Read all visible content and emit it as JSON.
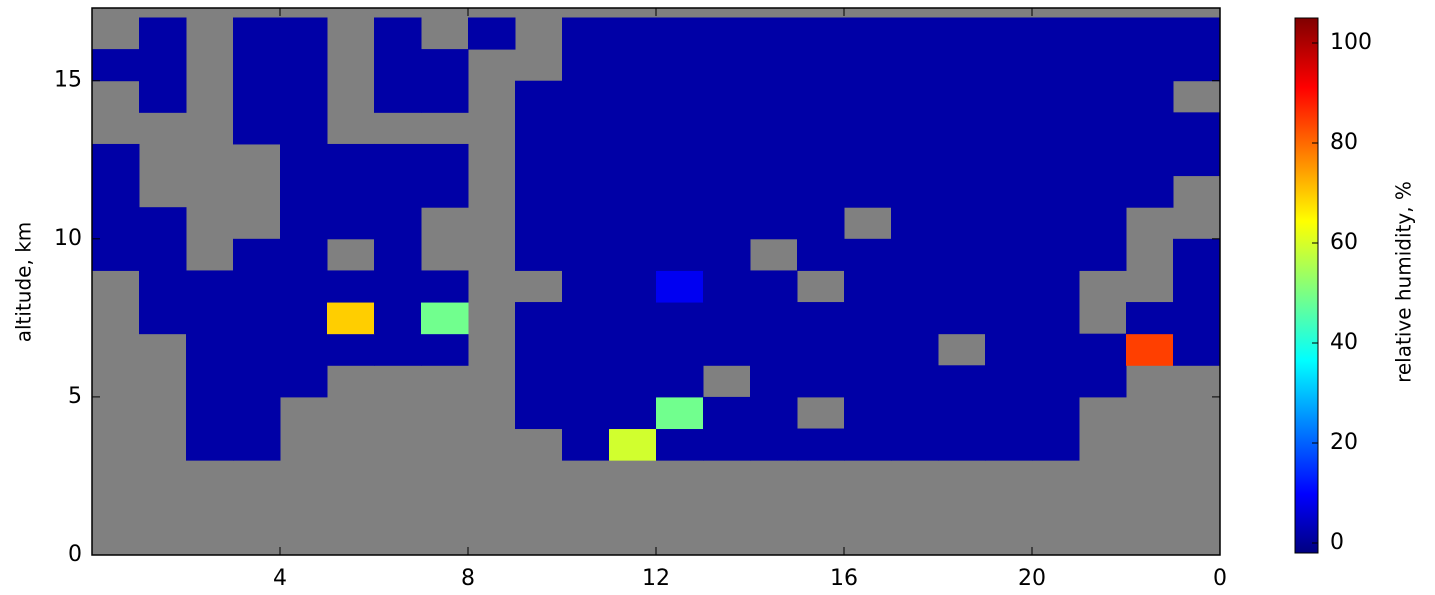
{
  "chart_data": {
    "type": "heatmap",
    "ylabel": "altitude, km",
    "xlim": [
      0,
      24
    ],
    "xticks": [
      4,
      8,
      12,
      16,
      20,
      {
        "value": 24,
        "label": "0"
      }
    ],
    "ylim": [
      0,
      17.3
    ],
    "yticks": [
      0,
      5,
      10,
      15
    ],
    "xbins": [
      0,
      1,
      2,
      3,
      4,
      5,
      6,
      7,
      8,
      9,
      10,
      11,
      12,
      13,
      14,
      15,
      16,
      17,
      18,
      19,
      20,
      21,
      22,
      23,
      24
    ],
    "ybins": [
      0,
      1,
      2,
      3,
      4,
      5,
      6,
      7,
      8,
      9,
      10,
      11,
      12,
      13,
      14,
      15,
      16,
      17
    ],
    "background": "#808080",
    "colormap": "jet",
    "z": [
      [
        null,
        null,
        null,
        null,
        null,
        null,
        null,
        null,
        null,
        null,
        null,
        null,
        null,
        null,
        null,
        null,
        null,
        null,
        null,
        null,
        null,
        null,
        null,
        null
      ],
      [
        null,
        null,
        null,
        null,
        null,
        null,
        null,
        null,
        null,
        null,
        null,
        null,
        null,
        null,
        null,
        null,
        null,
        null,
        null,
        null,
        null,
        null,
        null,
        null
      ],
      [
        null,
        null,
        null,
        null,
        null,
        null,
        null,
        null,
        null,
        null,
        null,
        null,
        null,
        null,
        null,
        null,
        null,
        null,
        null,
        null,
        null,
        null,
        null,
        null
      ],
      [
        null,
        null,
        2,
        2,
        null,
        null,
        null,
        null,
        null,
        null,
        2,
        60,
        2,
        2,
        2,
        2,
        2,
        2,
        2,
        2,
        2,
        null,
        null,
        null
      ],
      [
        null,
        null,
        2,
        2,
        null,
        null,
        null,
        null,
        null,
        2,
        2,
        2,
        50,
        2,
        2,
        null,
        2,
        2,
        2,
        2,
        2,
        null,
        null,
        null
      ],
      [
        null,
        null,
        2,
        2,
        2,
        null,
        null,
        null,
        null,
        2,
        2,
        2,
        2,
        null,
        2,
        2,
        2,
        2,
        2,
        2,
        2,
        2,
        null,
        null
      ],
      [
        null,
        null,
        2,
        2,
        2,
        2,
        2,
        2,
        null,
        2,
        2,
        2,
        2,
        2,
        2,
        2,
        2,
        2,
        null,
        2,
        2,
        2,
        85,
        2
      ],
      [
        null,
        2,
        2,
        2,
        2,
        70,
        2,
        50,
        null,
        2,
        2,
        2,
        2,
        2,
        2,
        2,
        2,
        2,
        2,
        2,
        2,
        null,
        2,
        2
      ],
      [
        null,
        2,
        2,
        2,
        2,
        2,
        2,
        2,
        null,
        null,
        2,
        2,
        10,
        2,
        2,
        null,
        2,
        2,
        2,
        2,
        2,
        null,
        null,
        2
      ],
      [
        2,
        2,
        null,
        2,
        2,
        null,
        2,
        null,
        null,
        2,
        2,
        2,
        2,
        2,
        null,
        2,
        2,
        2,
        2,
        2,
        2,
        2,
        null,
        2
      ],
      [
        2,
        2,
        null,
        null,
        2,
        2,
        2,
        null,
        null,
        2,
        2,
        2,
        2,
        2,
        2,
        2,
        null,
        2,
        2,
        2,
        2,
        2,
        null,
        null
      ],
      [
        2,
        null,
        null,
        null,
        2,
        2,
        2,
        2,
        null,
        2,
        2,
        2,
        2,
        2,
        2,
        2,
        2,
        2,
        2,
        2,
        2,
        2,
        2,
        null
      ],
      [
        2,
        null,
        null,
        null,
        2,
        2,
        2,
        2,
        null,
        2,
        2,
        2,
        2,
        2,
        2,
        2,
        2,
        2,
        2,
        2,
        2,
        2,
        2,
        2
      ],
      [
        null,
        null,
        null,
        2,
        2,
        null,
        null,
        null,
        null,
        2,
        2,
        2,
        2,
        2,
        2,
        2,
        2,
        2,
        2,
        2,
        2,
        2,
        2,
        2
      ],
      [
        null,
        2,
        null,
        2,
        2,
        null,
        2,
        2,
        null,
        2,
        2,
        2,
        2,
        2,
        2,
        2,
        2,
        2,
        2,
        2,
        2,
        2,
        2,
        null
      ],
      [
        2,
        2,
        null,
        2,
        2,
        null,
        2,
        2,
        null,
        null,
        2,
        2,
        2,
        2,
        2,
        2,
        2,
        2,
        2,
        2,
        2,
        2,
        2,
        2
      ],
      [
        null,
        2,
        null,
        2,
        2,
        null,
        2,
        null,
        2,
        null,
        2,
        2,
        2,
        2,
        2,
        2,
        2,
        2,
        2,
        2,
        2,
        2,
        2,
        2
      ]
    ],
    "colorbar": {
      "label": "relative humidity, %",
      "lim": [
        -2,
        105
      ],
      "ticks": [
        0,
        20,
        40,
        60,
        80,
        100
      ]
    }
  }
}
